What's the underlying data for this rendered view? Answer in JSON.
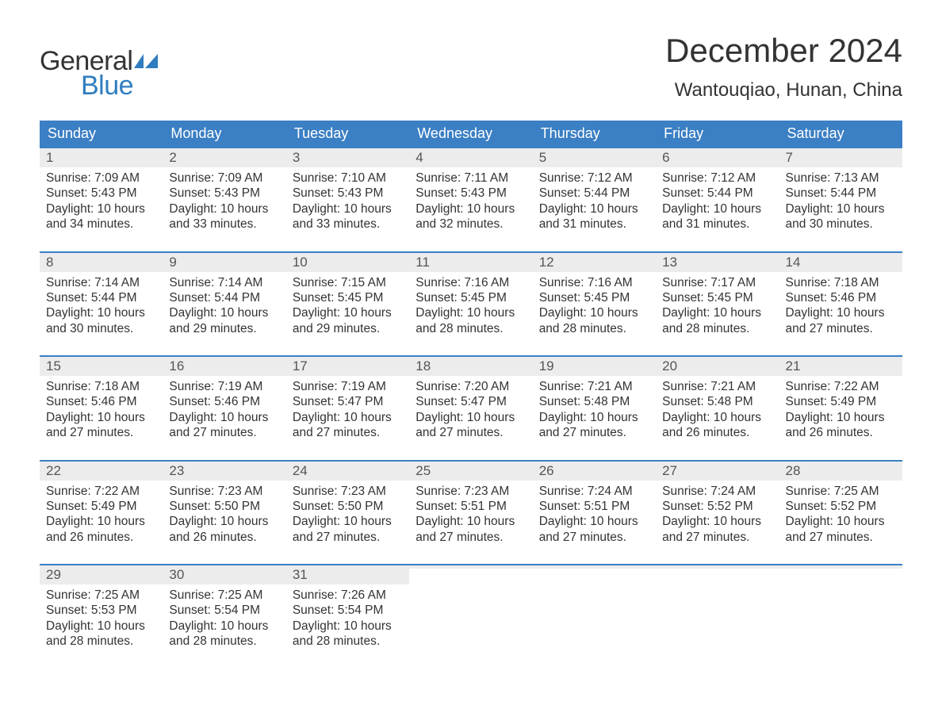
{
  "logo": {
    "word1": "General",
    "word2": "Blue",
    "word1_color": "#333333",
    "word2_color": "#2f7dc0",
    "flag_color": "#2f7dc0"
  },
  "header": {
    "month_title": "December 2024",
    "location": "Wantouqiao, Hunan, China"
  },
  "colors": {
    "header_bg": "#3b7fc4",
    "header_text": "#ffffff",
    "daynum_bg": "#ececec",
    "daynum_text": "#555555",
    "body_text": "#333333",
    "row_border": "#3b7fc4",
    "background": "#ffffff"
  },
  "typography": {
    "month_title_fontsize": 42,
    "location_fontsize": 24,
    "day_header_fontsize": 18,
    "daynum_fontsize": 17,
    "content_fontsize": 15.5,
    "font_family": "Arial"
  },
  "day_names": [
    "Sunday",
    "Monday",
    "Tuesday",
    "Wednesday",
    "Thursday",
    "Friday",
    "Saturday"
  ],
  "weeks": [
    [
      {
        "num": "1",
        "sunrise": "Sunrise: 7:09 AM",
        "sunset": "Sunset: 5:43 PM",
        "dl1": "Daylight: 10 hours",
        "dl2": "and 34 minutes."
      },
      {
        "num": "2",
        "sunrise": "Sunrise: 7:09 AM",
        "sunset": "Sunset: 5:43 PM",
        "dl1": "Daylight: 10 hours",
        "dl2": "and 33 minutes."
      },
      {
        "num": "3",
        "sunrise": "Sunrise: 7:10 AM",
        "sunset": "Sunset: 5:43 PM",
        "dl1": "Daylight: 10 hours",
        "dl2": "and 33 minutes."
      },
      {
        "num": "4",
        "sunrise": "Sunrise: 7:11 AM",
        "sunset": "Sunset: 5:43 PM",
        "dl1": "Daylight: 10 hours",
        "dl2": "and 32 minutes."
      },
      {
        "num": "5",
        "sunrise": "Sunrise: 7:12 AM",
        "sunset": "Sunset: 5:44 PM",
        "dl1": "Daylight: 10 hours",
        "dl2": "and 31 minutes."
      },
      {
        "num": "6",
        "sunrise": "Sunrise: 7:12 AM",
        "sunset": "Sunset: 5:44 PM",
        "dl1": "Daylight: 10 hours",
        "dl2": "and 31 minutes."
      },
      {
        "num": "7",
        "sunrise": "Sunrise: 7:13 AM",
        "sunset": "Sunset: 5:44 PM",
        "dl1": "Daylight: 10 hours",
        "dl2": "and 30 minutes."
      }
    ],
    [
      {
        "num": "8",
        "sunrise": "Sunrise: 7:14 AM",
        "sunset": "Sunset: 5:44 PM",
        "dl1": "Daylight: 10 hours",
        "dl2": "and 30 minutes."
      },
      {
        "num": "9",
        "sunrise": "Sunrise: 7:14 AM",
        "sunset": "Sunset: 5:44 PM",
        "dl1": "Daylight: 10 hours",
        "dl2": "and 29 minutes."
      },
      {
        "num": "10",
        "sunrise": "Sunrise: 7:15 AM",
        "sunset": "Sunset: 5:45 PM",
        "dl1": "Daylight: 10 hours",
        "dl2": "and 29 minutes."
      },
      {
        "num": "11",
        "sunrise": "Sunrise: 7:16 AM",
        "sunset": "Sunset: 5:45 PM",
        "dl1": "Daylight: 10 hours",
        "dl2": "and 28 minutes."
      },
      {
        "num": "12",
        "sunrise": "Sunrise: 7:16 AM",
        "sunset": "Sunset: 5:45 PM",
        "dl1": "Daylight: 10 hours",
        "dl2": "and 28 minutes."
      },
      {
        "num": "13",
        "sunrise": "Sunrise: 7:17 AM",
        "sunset": "Sunset: 5:45 PM",
        "dl1": "Daylight: 10 hours",
        "dl2": "and 28 minutes."
      },
      {
        "num": "14",
        "sunrise": "Sunrise: 7:18 AM",
        "sunset": "Sunset: 5:46 PM",
        "dl1": "Daylight: 10 hours",
        "dl2": "and 27 minutes."
      }
    ],
    [
      {
        "num": "15",
        "sunrise": "Sunrise: 7:18 AM",
        "sunset": "Sunset: 5:46 PM",
        "dl1": "Daylight: 10 hours",
        "dl2": "and 27 minutes."
      },
      {
        "num": "16",
        "sunrise": "Sunrise: 7:19 AM",
        "sunset": "Sunset: 5:46 PM",
        "dl1": "Daylight: 10 hours",
        "dl2": "and 27 minutes."
      },
      {
        "num": "17",
        "sunrise": "Sunrise: 7:19 AM",
        "sunset": "Sunset: 5:47 PM",
        "dl1": "Daylight: 10 hours",
        "dl2": "and 27 minutes."
      },
      {
        "num": "18",
        "sunrise": "Sunrise: 7:20 AM",
        "sunset": "Sunset: 5:47 PM",
        "dl1": "Daylight: 10 hours",
        "dl2": "and 27 minutes."
      },
      {
        "num": "19",
        "sunrise": "Sunrise: 7:21 AM",
        "sunset": "Sunset: 5:48 PM",
        "dl1": "Daylight: 10 hours",
        "dl2": "and 27 minutes."
      },
      {
        "num": "20",
        "sunrise": "Sunrise: 7:21 AM",
        "sunset": "Sunset: 5:48 PM",
        "dl1": "Daylight: 10 hours",
        "dl2": "and 26 minutes."
      },
      {
        "num": "21",
        "sunrise": "Sunrise: 7:22 AM",
        "sunset": "Sunset: 5:49 PM",
        "dl1": "Daylight: 10 hours",
        "dl2": "and 26 minutes."
      }
    ],
    [
      {
        "num": "22",
        "sunrise": "Sunrise: 7:22 AM",
        "sunset": "Sunset: 5:49 PM",
        "dl1": "Daylight: 10 hours",
        "dl2": "and 26 minutes."
      },
      {
        "num": "23",
        "sunrise": "Sunrise: 7:23 AM",
        "sunset": "Sunset: 5:50 PM",
        "dl1": "Daylight: 10 hours",
        "dl2": "and 26 minutes."
      },
      {
        "num": "24",
        "sunrise": "Sunrise: 7:23 AM",
        "sunset": "Sunset: 5:50 PM",
        "dl1": "Daylight: 10 hours",
        "dl2": "and 27 minutes."
      },
      {
        "num": "25",
        "sunrise": "Sunrise: 7:23 AM",
        "sunset": "Sunset: 5:51 PM",
        "dl1": "Daylight: 10 hours",
        "dl2": "and 27 minutes."
      },
      {
        "num": "26",
        "sunrise": "Sunrise: 7:24 AM",
        "sunset": "Sunset: 5:51 PM",
        "dl1": "Daylight: 10 hours",
        "dl2": "and 27 minutes."
      },
      {
        "num": "27",
        "sunrise": "Sunrise: 7:24 AM",
        "sunset": "Sunset: 5:52 PM",
        "dl1": "Daylight: 10 hours",
        "dl2": "and 27 minutes."
      },
      {
        "num": "28",
        "sunrise": "Sunrise: 7:25 AM",
        "sunset": "Sunset: 5:52 PM",
        "dl1": "Daylight: 10 hours",
        "dl2": "and 27 minutes."
      }
    ],
    [
      {
        "num": "29",
        "sunrise": "Sunrise: 7:25 AM",
        "sunset": "Sunset: 5:53 PM",
        "dl1": "Daylight: 10 hours",
        "dl2": "and 28 minutes."
      },
      {
        "num": "30",
        "sunrise": "Sunrise: 7:25 AM",
        "sunset": "Sunset: 5:54 PM",
        "dl1": "Daylight: 10 hours",
        "dl2": "and 28 minutes."
      },
      {
        "num": "31",
        "sunrise": "Sunrise: 7:26 AM",
        "sunset": "Sunset: 5:54 PM",
        "dl1": "Daylight: 10 hours",
        "dl2": "and 28 minutes."
      },
      {
        "num": "",
        "sunrise": "",
        "sunset": "",
        "dl1": "",
        "dl2": ""
      },
      {
        "num": "",
        "sunrise": "",
        "sunset": "",
        "dl1": "",
        "dl2": ""
      },
      {
        "num": "",
        "sunrise": "",
        "sunset": "",
        "dl1": "",
        "dl2": ""
      },
      {
        "num": "",
        "sunrise": "",
        "sunset": "",
        "dl1": "",
        "dl2": ""
      }
    ]
  ]
}
